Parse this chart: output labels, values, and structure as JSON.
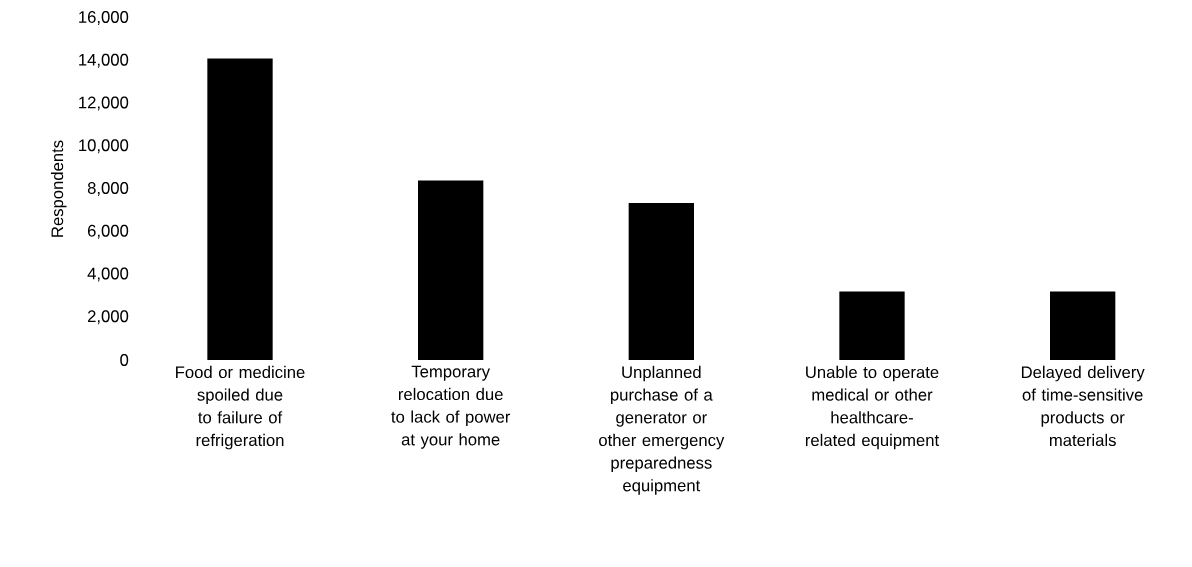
{
  "chart_data": {
    "type": "bar",
    "ylabel": "Respondents",
    "categories": [
      "Food or medicine spoiled due to failure of refrigeration",
      "Temporary relocation due to lack of power at your home",
      "Unplanned purchase of a generator or other emergency preparedness equipment",
      "Unable to operate medical or other healthcare-related equipment",
      "Delayed delivery of time-sensitive products or materials"
    ],
    "values": [
      14100,
      8400,
      7350,
      3200,
      3200
    ],
    "color": "#000000",
    "ylim": [
      0,
      16000
    ],
    "yticks": [
      0,
      {
        "value": 2000,
        "label": "2,000"
      },
      {
        "value": 4000,
        "label": "4,000"
      },
      {
        "value": 6000,
        "label": "6,000"
      },
      {
        "value": 8000,
        "label": "8,000"
      },
      {
        "value": 10000,
        "label": "10,000"
      },
      {
        "value": 12000,
        "label": "12,000"
      },
      {
        "value": 14000,
        "label": "14,000"
      },
      {
        "value": 16000,
        "label": "16,000"
      }
    ]
  }
}
